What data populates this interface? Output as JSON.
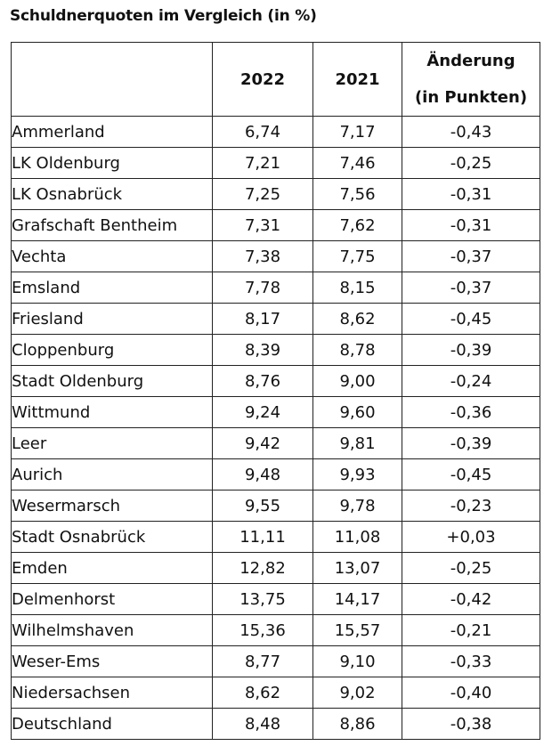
{
  "title": "Schuldnerquoten im Vergleich (in %)",
  "table": {
    "headers": {
      "region": "",
      "year_2022": "2022",
      "year_2021": "2021",
      "change_line1": "Änderung",
      "change_line2": "(in Punkten)"
    },
    "rows": [
      {
        "name": "Ammerland",
        "v2022": "6,74",
        "v2021": "7,17",
        "change": "-0,43"
      },
      {
        "name": "LK Oldenburg",
        "v2022": "7,21",
        "v2021": "7,46",
        "change": "-0,25"
      },
      {
        "name": "LK Osnabrück",
        "v2022": "7,25",
        "v2021": "7,56",
        "change": "-0,31"
      },
      {
        "name": "Grafschaft Bentheim",
        "v2022": "7,31",
        "v2021": "7,62",
        "change": "-0,31"
      },
      {
        "name": "Vechta",
        "v2022": "7,38",
        "v2021": "7,75",
        "change": "-0,37"
      },
      {
        "name": "Emsland",
        "v2022": "7,78",
        "v2021": "8,15",
        "change": "-0,37"
      },
      {
        "name": "Friesland",
        "v2022": "8,17",
        "v2021": "8,62",
        "change": "-0,45"
      },
      {
        "name": "Cloppenburg",
        "v2022": "8,39",
        "v2021": "8,78",
        "change": "-0,39"
      },
      {
        "name": "Stadt Oldenburg",
        "v2022": "8,76",
        "v2021": "9,00",
        "change": "-0,24"
      },
      {
        "name": "Wittmund",
        "v2022": "9,24",
        "v2021": "9,60",
        "change": "-0,36"
      },
      {
        "name": "Leer",
        "v2022": "9,42",
        "v2021": "9,81",
        "change": "-0,39"
      },
      {
        "name": "Aurich",
        "v2022": "9,48",
        "v2021": "9,93",
        "change": "-0,45"
      },
      {
        "name": "Wesermarsch",
        "v2022": "9,55",
        "v2021": "9,78",
        "change": "-0,23"
      },
      {
        "name": "Stadt Osnabrück",
        "v2022": "11,11",
        "v2021": "11,08",
        "change": "+0,03"
      },
      {
        "name": "Emden",
        "v2022": "12,82",
        "v2021": "13,07",
        "change": "-0,25"
      },
      {
        "name": "Delmenhorst",
        "v2022": "13,75",
        "v2021": "14,17",
        "change": "-0,42"
      },
      {
        "name": "Wilhelmshaven",
        "v2022": "15,36",
        "v2021": "15,57",
        "change": "-0,21"
      },
      {
        "name": "Weser-Ems",
        "v2022": "8,77",
        "v2021": "9,10",
        "change": "-0,33"
      },
      {
        "name": "Niedersachsen",
        "v2022": "8,62",
        "v2021": "9,02",
        "change": "-0,40"
      },
      {
        "name": "Deutschland",
        "v2022": "8,48",
        "v2021": "8,86",
        "change": "-0,38"
      }
    ]
  }
}
